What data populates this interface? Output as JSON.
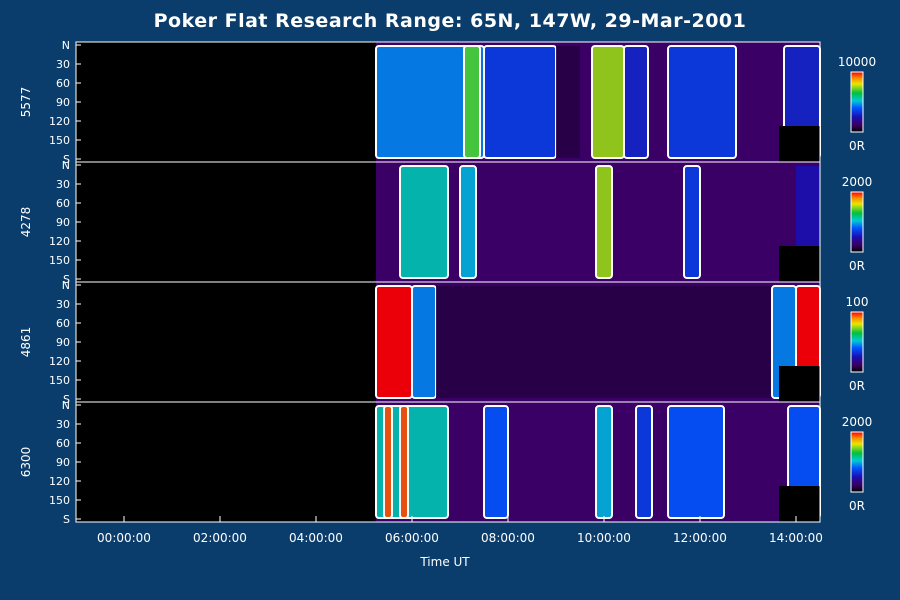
{
  "title": "Poker Flat Research Range: 65N, 147W, 29-Mar-2001",
  "xlabel": "Time UT",
  "chart_data": {
    "type": "heatmap",
    "title": "Poker Flat Research Range: 65N, 147W, 29-Mar-2001",
    "xlabel": "Time UT",
    "xlim": [
      "23:00:00",
      "14:30:00"
    ],
    "x_ticks": [
      "00:00:00",
      "02:00:00",
      "04:00:00",
      "06:00:00",
      "08:00:00",
      "10:00:00",
      "12:00:00",
      "14:00:00"
    ],
    "y_ticks": [
      "N",
      "30",
      "60",
      "90",
      "120",
      "150",
      "S"
    ],
    "data_start": "05:15:00",
    "panels": [
      {
        "name": "5577",
        "colorbar_max": "10000",
        "colorbar_min": "0R",
        "bands": [
          {
            "start": "05:15",
            "end": "07:30",
            "level": 0.45
          },
          {
            "start": "07:05",
            "end": "07:25",
            "level": 0.7
          },
          {
            "start": "07:30",
            "end": "09:00",
            "level": 0.35
          },
          {
            "start": "09:00",
            "end": "09:30",
            "level": 0.08
          },
          {
            "start": "09:45",
            "end": "10:25",
            "level": 0.75
          },
          {
            "start": "10:25",
            "end": "10:55",
            "level": 0.3
          },
          {
            "start": "11:20",
            "end": "12:45",
            "level": 0.35
          },
          {
            "start": "13:45",
            "end": "14:30",
            "level": 0.3
          }
        ]
      },
      {
        "name": "4278",
        "colorbar_max": "2000",
        "colorbar_min": "0R",
        "bands": [
          {
            "start": "05:45",
            "end": "06:45",
            "level": 0.55
          },
          {
            "start": "07:00",
            "end": "07:20",
            "level": 0.5
          },
          {
            "start": "09:50",
            "end": "10:10",
            "level": 0.75
          },
          {
            "start": "11:40",
            "end": "12:00",
            "level": 0.35
          },
          {
            "start": "14:00",
            "end": "14:30",
            "level": 0.25
          }
        ]
      },
      {
        "name": "4861",
        "colorbar_max": "100",
        "colorbar_min": "0R",
        "bands": [
          {
            "start": "05:15",
            "end": "06:00",
            "level": 1.0
          },
          {
            "start": "06:00",
            "end": "06:30",
            "level": 0.45
          },
          {
            "start": "06:30",
            "end": "13:30",
            "level": 0.08
          },
          {
            "start": "13:30",
            "end": "14:00",
            "level": 0.45
          },
          {
            "start": "14:00",
            "end": "14:30",
            "level": 1.0
          }
        ]
      },
      {
        "name": "6300",
        "colorbar_max": "2000",
        "colorbar_min": "0R",
        "bands": [
          {
            "start": "05:15",
            "end": "06:45",
            "level": 0.55
          },
          {
            "start": "05:25",
            "end": "05:35",
            "level": 0.95
          },
          {
            "start": "05:45",
            "end": "05:55",
            "level": 0.95
          },
          {
            "start": "07:30",
            "end": "08:00",
            "level": 0.4
          },
          {
            "start": "09:50",
            "end": "10:10",
            "level": 0.5
          },
          {
            "start": "10:40",
            "end": "11:00",
            "level": 0.35
          },
          {
            "start": "11:20",
            "end": "12:30",
            "level": 0.4
          },
          {
            "start": "13:50",
            "end": "14:30",
            "level": 0.4
          }
        ]
      }
    ]
  }
}
